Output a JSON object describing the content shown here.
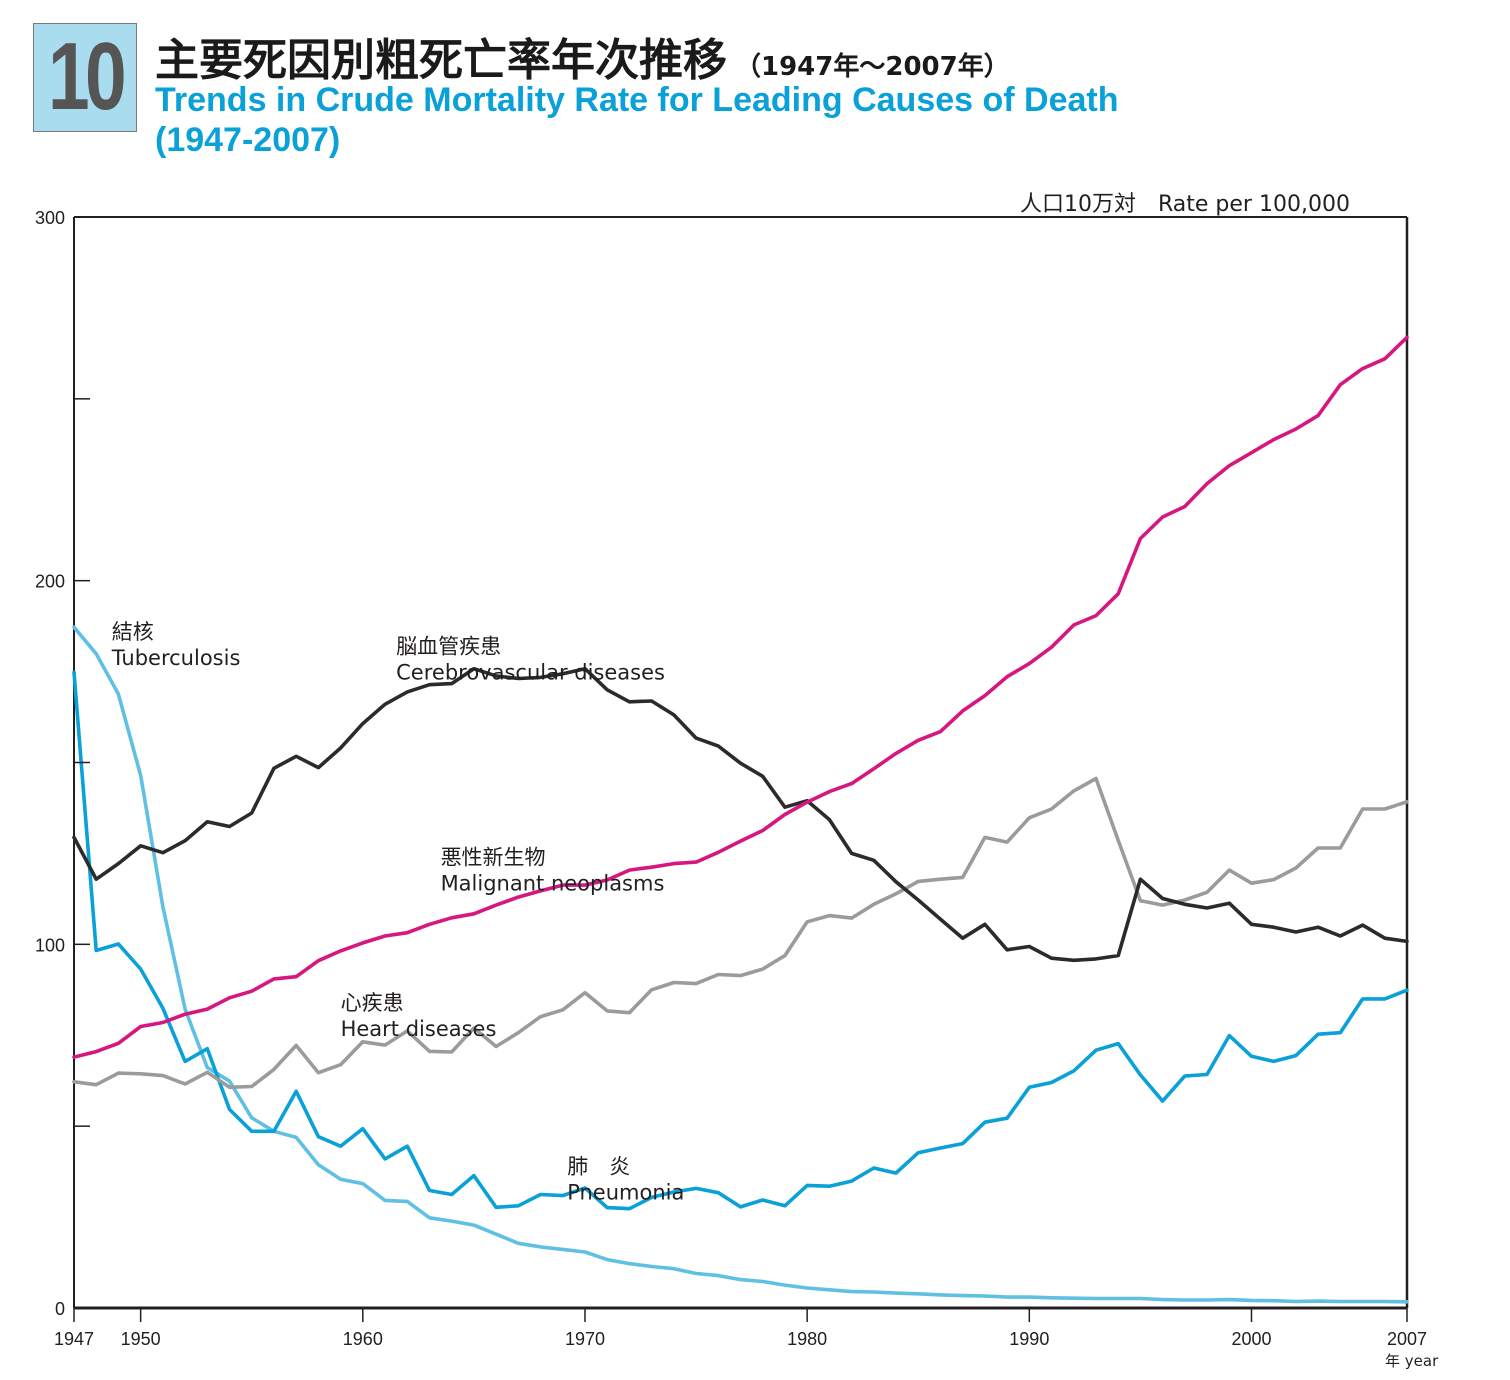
{
  "header": {
    "number": "10",
    "title_jp": "主要死因別粗死亡率年次推移",
    "title_jp_range": "（1947年〜2007年）",
    "title_en_line1": "Trends in Crude Mortality Rate for Leading Causes of Death",
    "title_en_line2": "(1947-2007)",
    "unit": "人口10万対　Rate per 100,000"
  },
  "chart_data": {
    "type": "line",
    "title": "Trends in Crude Mortality Rate for Leading Causes of Death (1947-2007)",
    "xlabel": "年 year",
    "ylabel": "人口10万対 Rate per 100,000",
    "xlim": [
      1947,
      2007
    ],
    "ylim": [
      0,
      300
    ],
    "grid": false,
    "x_ticks": [
      1947,
      1950,
      1960,
      1970,
      1980,
      1990,
      2000,
      2007
    ],
    "x_tick_labels": [
      "1947",
      "1950",
      "1960",
      "1970",
      "1980",
      "1990",
      "2000",
      "2007"
    ],
    "y_ticks": [
      0,
      50,
      100,
      150,
      200,
      250,
      300
    ],
    "y_tick_labels": [
      "0",
      "",
      "100",
      "",
      "200",
      "",
      "300"
    ],
    "year_unit_label": "年 year",
    "x": [
      1947,
      1948,
      1949,
      1950,
      1951,
      1952,
      1953,
      1954,
      1955,
      1956,
      1957,
      1958,
      1959,
      1960,
      1961,
      1962,
      1963,
      1964,
      1965,
      1966,
      1967,
      1968,
      1969,
      1970,
      1971,
      1972,
      1973,
      1974,
      1975,
      1976,
      1977,
      1978,
      1979,
      1980,
      1981,
      1982,
      1983,
      1984,
      1985,
      1986,
      1987,
      1988,
      1989,
      1990,
      1991,
      1992,
      1993,
      1994,
      1995,
      1996,
      1997,
      1998,
      1999,
      2000,
      2001,
      2002,
      2003,
      2004,
      2005,
      2006,
      2007
    ],
    "series": [
      {
        "name": "Malignant neoplasms",
        "name_jp": "悪性新生物",
        "color": "#d6177f",
        "label_pos": [
          1963.5,
          122
        ],
        "values": [
          69.0,
          70.5,
          72.8,
          77.4,
          78.5,
          80.8,
          82.2,
          85.3,
          87.1,
          90.5,
          91.1,
          95.5,
          98.2,
          100.4,
          102.3,
          103.2,
          105.5,
          107.3,
          108.4,
          110.8,
          113.0,
          114.7,
          116.3,
          116.3,
          117.7,
          120.4,
          121.2,
          122.2,
          122.6,
          125.3,
          128.4,
          131.3,
          135.7,
          139.1,
          142.0,
          144.2,
          148.3,
          152.5,
          156.1,
          158.5,
          164.2,
          168.4,
          173.6,
          177.2,
          181.7,
          187.8,
          190.4,
          196.4,
          211.6,
          217.5,
          220.4,
          226.7,
          231.6,
          235.2,
          238.8,
          241.7,
          245.4,
          253.9,
          258.3,
          261.0,
          266.9
        ]
      },
      {
        "name": "Cerebrovascular diseases",
        "name_jp": "脳血管疾患",
        "color": "#2b2b2b",
        "label_pos": [
          1961.5,
          180
        ],
        "values": [
          129.4,
          117.9,
          122.2,
          127.1,
          125.2,
          128.5,
          133.7,
          132.4,
          136.1,
          148.4,
          151.7,
          148.6,
          154.0,
          160.7,
          166.0,
          169.4,
          171.4,
          171.7,
          175.8,
          173.8,
          173.1,
          173.4,
          174.4,
          175.8,
          170.0,
          166.7,
          166.9,
          163.1,
          156.7,
          154.5,
          149.8,
          146.2,
          137.7,
          139.5,
          134.3,
          125.0,
          123.1,
          117.2,
          112.2,
          106.9,
          101.7,
          105.5,
          98.5,
          99.4,
          96.2,
          95.6,
          96.0,
          96.9,
          117.9,
          112.6,
          111.0,
          110.0,
          111.3,
          105.5,
          104.7,
          103.4,
          104.7,
          102.3,
          105.3,
          101.7,
          100.8
        ]
      },
      {
        "name": "Heart diseases",
        "name_jp": "心疾患",
        "color": "#999c9e",
        "label_pos": [
          1959,
          82
        ],
        "values": [
          62.2,
          61.4,
          64.6,
          64.4,
          63.9,
          61.6,
          64.8,
          60.7,
          60.9,
          65.6,
          72.2,
          64.7,
          66.9,
          73.2,
          72.3,
          76.2,
          70.6,
          70.4,
          77.0,
          71.9,
          75.7,
          80.1,
          82.0,
          86.7,
          81.7,
          81.2,
          87.5,
          89.5,
          89.2,
          91.7,
          91.4,
          93.2,
          96.9,
          106.2,
          107.9,
          107.2,
          111.0,
          113.9,
          117.3,
          117.9,
          118.4,
          129.4,
          128.1,
          134.8,
          137.2,
          142.2,
          145.6,
          128.6,
          112.0,
          110.8,
          112.2,
          114.3,
          120.4,
          116.8,
          117.8,
          121.0,
          126.5,
          126.5,
          137.2,
          137.2,
          139.2
        ]
      },
      {
        "name": "Pneumonia",
        "name_jp": "肺　炎",
        "color": "#0aa0d8",
        "label_pos": [
          1969.2,
          37
        ],
        "values": [
          174.8,
          98.3,
          100.1,
          93.2,
          82.4,
          67.8,
          71.3,
          54.6,
          48.6,
          48.6,
          59.6,
          47.1,
          44.5,
          49.3,
          41.0,
          44.5,
          32.3,
          31.2,
          36.4,
          27.7,
          28.1,
          31.2,
          30.9,
          33.0,
          27.6,
          27.3,
          30.4,
          31.9,
          32.9,
          31.7,
          27.8,
          29.7,
          28.1,
          33.7,
          33.5,
          34.9,
          38.5,
          37.1,
          42.7,
          44.0,
          45.2,
          51.1,
          52.2,
          60.7,
          62.0,
          65.2,
          70.9,
          72.7,
          64.1,
          56.9,
          63.8,
          64.2,
          74.9,
          69.2,
          67.8,
          69.4,
          75.3,
          75.7,
          85.0,
          85.0,
          87.4
        ]
      },
      {
        "name": "Tuberculosis",
        "name_jp": "結核",
        "color": "#5fc0e4",
        "label_pos": [
          1948.7,
          184
        ],
        "values": [
          187.2,
          179.9,
          168.8,
          146.4,
          110.3,
          82.2,
          66.1,
          62.4,
          52.3,
          48.6,
          46.9,
          39.4,
          35.4,
          34.2,
          29.6,
          29.3,
          24.8,
          23.9,
          22.8,
          20.3,
          17.8,
          16.8,
          16.1,
          15.4,
          13.3,
          12.2,
          11.4,
          10.8,
          9.5,
          8.9,
          7.8,
          7.3,
          6.3,
          5.5,
          5.0,
          4.5,
          4.4,
          4.1,
          3.9,
          3.6,
          3.4,
          3.3,
          3.0,
          3.0,
          2.8,
          2.7,
          2.6,
          2.6,
          2.6,
          2.3,
          2.2,
          2.2,
          2.3,
          2.1,
          2.0,
          1.8,
          1.9,
          1.8,
          1.8,
          1.8,
          1.7
        ]
      }
    ]
  }
}
